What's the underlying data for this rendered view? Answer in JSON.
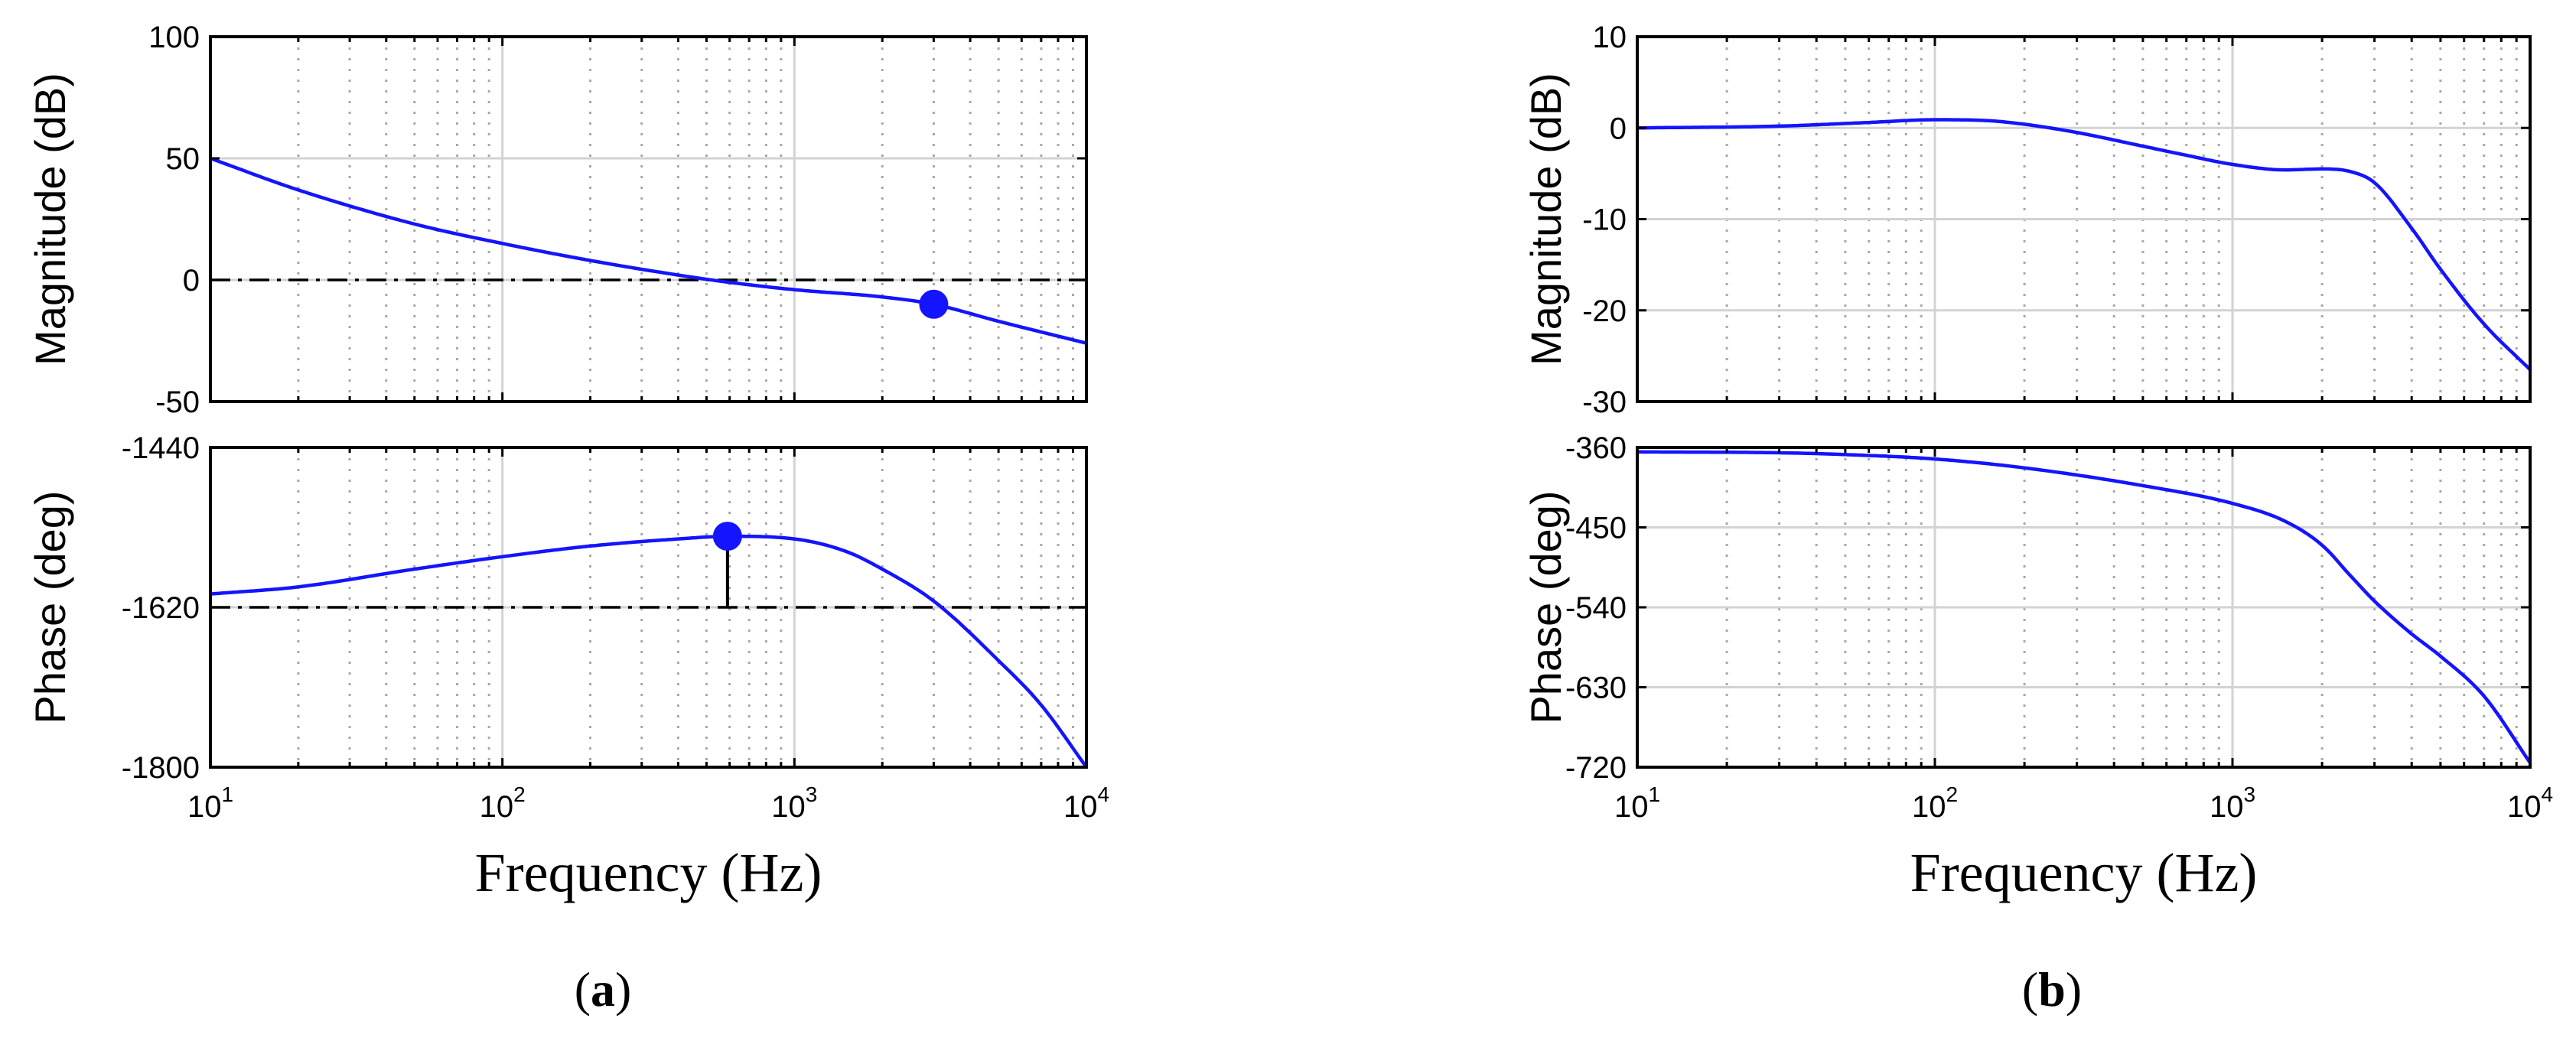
{
  "chart_data": [
    {
      "panel": "a",
      "type": "line",
      "subplots": [
        {
          "id": "magnitude",
          "ylabel": "Magnitude (dB)",
          "ylim": [
            -50,
            100
          ],
          "yticks": [
            -50,
            0,
            50,
            100
          ],
          "xlim": [
            10,
            10000
          ],
          "xscale": "log",
          "grid": true,
          "reference_line": {
            "y": 0,
            "style": "dash-dot"
          },
          "series": [
            {
              "name": "Magnitude",
              "color": "#1414ff",
              "x": [
                10,
                20,
                50,
                100,
                200,
                400,
                600,
                1000,
                2000,
                3000,
                5000,
                10000
              ],
              "y": [
                50,
                37,
                23,
                15,
                8,
                2,
                -1,
                -4,
                -7,
                -10,
                -17,
                -26
              ]
            }
          ],
          "markers": [
            {
              "x": 3000,
              "y": -10,
              "color": "#1414ff"
            }
          ]
        },
        {
          "id": "phase",
          "ylabel": "Phase (deg)",
          "ylim": [
            -1800,
            -1440
          ],
          "yticks": [
            -1800,
            -1620,
            -1440
          ],
          "xlim": [
            10,
            10000
          ],
          "xscale": "log",
          "grid": true,
          "reference_line": {
            "y": -1620,
            "style": "dash-dot"
          },
          "series": [
            {
              "name": "Phase",
              "color": "#1414ff",
              "x": [
                10,
                20,
                50,
                100,
                200,
                400,
                600,
                1000,
                1500,
                2000,
                3000,
                5000,
                7000,
                10000
              ],
              "y": [
                -1605,
                -1597,
                -1577,
                -1563,
                -1551,
                -1543,
                -1540,
                -1543,
                -1557,
                -1577,
                -1613,
                -1680,
                -1730,
                -1800
              ]
            }
          ],
          "markers": [
            {
              "x": 590,
              "y": -1540,
              "color": "#1414ff",
              "stem_to": -1620
            }
          ]
        }
      ],
      "xlabel": "Frequency (Hz)",
      "xtick_labels": [
        {
          "base": "10",
          "exp": "1"
        },
        {
          "base": "10",
          "exp": "2"
        },
        {
          "base": "10",
          "exp": "3"
        },
        {
          "base": "10",
          "exp": "4"
        }
      ],
      "caption": {
        "open": "(",
        "letter": "a",
        "close": ")"
      }
    },
    {
      "panel": "b",
      "type": "line",
      "subplots": [
        {
          "id": "magnitude",
          "ylabel": "Magnitude (dB)",
          "ylim": [
            -30,
            10
          ],
          "yticks": [
            -30,
            -20,
            -10,
            0,
            10
          ],
          "xlim": [
            10,
            10000
          ],
          "xscale": "log",
          "grid": true,
          "series": [
            {
              "name": "Magnitude",
              "color": "#1414ff",
              "x": [
                10,
                30,
                60,
                100,
                150,
                200,
                300,
                500,
                700,
                1000,
                1500,
                2000,
                2500,
                3000,
                4000,
                5000,
                7000,
                10000
              ],
              "y": [
                0,
                0.2,
                0.6,
                0.9,
                0.8,
                0.4,
                -0.5,
                -2,
                -3,
                -4,
                -4.6,
                -4.5,
                -4.8,
                -6,
                -11,
                -15.5,
                -21.5,
                -26.5
              ]
            }
          ]
        },
        {
          "id": "phase",
          "ylabel": "Phase (deg)",
          "ylim": [
            -720,
            -360
          ],
          "yticks": [
            -720,
            -630,
            -540,
            -450,
            -360
          ],
          "xlim": [
            10,
            10000
          ],
          "xscale": "log",
          "grid": true,
          "series": [
            {
              "name": "Phase",
              "color": "#1414ff",
              "x": [
                10,
                30,
                50,
                100,
                200,
                500,
                1000,
                1500,
                2000,
                2500,
                3000,
                4000,
                5000,
                7000,
                10000
              ],
              "y": [
                -365,
                -366,
                -368,
                -373,
                -383,
                -403,
                -423,
                -443,
                -470,
                -505,
                -533,
                -570,
                -595,
                -640,
                -715
              ]
            }
          ]
        }
      ],
      "xlabel": "Frequency (Hz)",
      "xtick_labels": [
        {
          "base": "10",
          "exp": "1"
        },
        {
          "base": "10",
          "exp": "2"
        },
        {
          "base": "10",
          "exp": "3"
        },
        {
          "base": "10",
          "exp": "4"
        }
      ],
      "caption": {
        "open": "(",
        "letter": "b",
        "close": ")"
      }
    }
  ]
}
